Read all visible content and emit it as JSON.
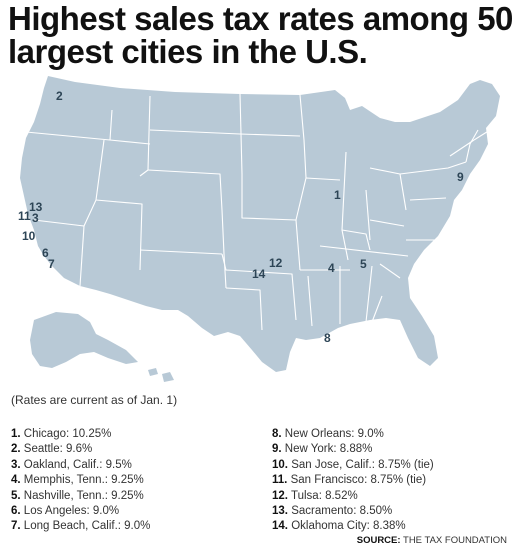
{
  "title": "Highest sales tax rates among 50 largest cities in the U.S.",
  "note": "(Rates are current as of Jan. 1)",
  "cities": [
    {
      "rank": "1.",
      "text": "Chicago: 10.25%"
    },
    {
      "rank": "2.",
      "text": "Seattle: 9.6%"
    },
    {
      "rank": "3.",
      "text": "Oakland, Calif.: 9.5%"
    },
    {
      "rank": "4.",
      "text": "Memphis, Tenn.: 9.25%"
    },
    {
      "rank": "5.",
      "text": "Nashville, Tenn.: 9.25%"
    },
    {
      "rank": "6.",
      "text": "Los Angeles: 9.0%"
    },
    {
      "rank": "7.",
      "text": "Long Beach, Calif.: 9.0%"
    },
    {
      "rank": "8.",
      "text": "New Orleans: 9.0%"
    },
    {
      "rank": "9.",
      "text": "New York: 8.88%"
    },
    {
      "rank": "10.",
      "text": "San Jose, Calif.: 8.75% (tie)"
    },
    {
      "rank": "11.",
      "text": "San Francisco: 8.75% (tie)"
    },
    {
      "rank": "12.",
      "text": "Tulsa: 8.52%"
    },
    {
      "rank": "13.",
      "text": "Sacramento: 8.50%"
    },
    {
      "rank": "14.",
      "text": "Oklahoma City: 8.38%"
    }
  ],
  "map_markers": [
    "1",
    "2",
    "3",
    "4",
    "5",
    "6",
    "7",
    "8",
    "9",
    "10",
    "11",
    "12",
    "13",
    "14"
  ],
  "source": {
    "label": "SOURCE:",
    "text": "THE TAX FOUNDATION"
  },
  "colors": {
    "land": "#b8c9d6",
    "border": "#ffffff",
    "marker": "#2d4556"
  }
}
